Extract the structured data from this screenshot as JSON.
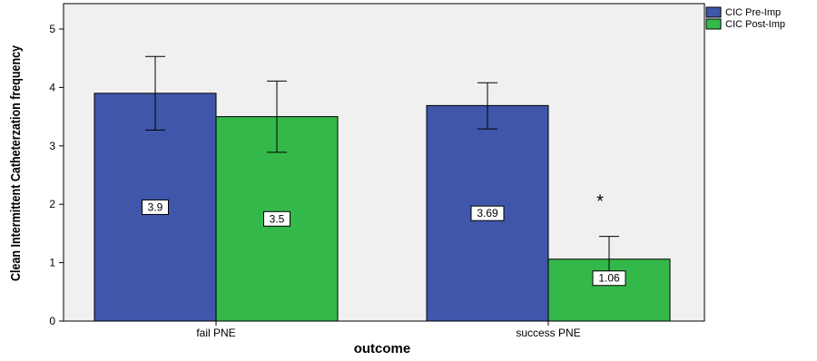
{
  "chart_data": {
    "type": "bar",
    "title": "",
    "xlabel": "outcome",
    "ylabel": "Clean Intermittent Catheterzation frequency",
    "categories": [
      "fail PNE",
      "success PNE"
    ],
    "ylim": [
      0,
      5
    ],
    "yticks": [
      0,
      1,
      2,
      3,
      4,
      5
    ],
    "series": [
      {
        "name": "CIC Pre-Imp",
        "color": "#3f56aa",
        "values": [
          3.9,
          3.69
        ],
        "labels": [
          "3.9",
          "3.69"
        ],
        "error_low": [
          3.27,
          3.29
        ],
        "error_high": [
          4.53,
          4.08
        ]
      },
      {
        "name": "CIC Post-Imp",
        "color": "#34b84a",
        "values": [
          3.5,
          1.06
        ],
        "labels": [
          "3.5",
          "1.06"
        ],
        "error_low": [
          2.89,
          0.68
        ],
        "error_high": [
          4.11,
          1.45
        ]
      }
    ],
    "annotations": [
      {
        "text": "*",
        "category": 1,
        "series": 1
      }
    ],
    "legend_position": "top-right",
    "grid": false,
    "plot_background": "#f0f0f0"
  }
}
